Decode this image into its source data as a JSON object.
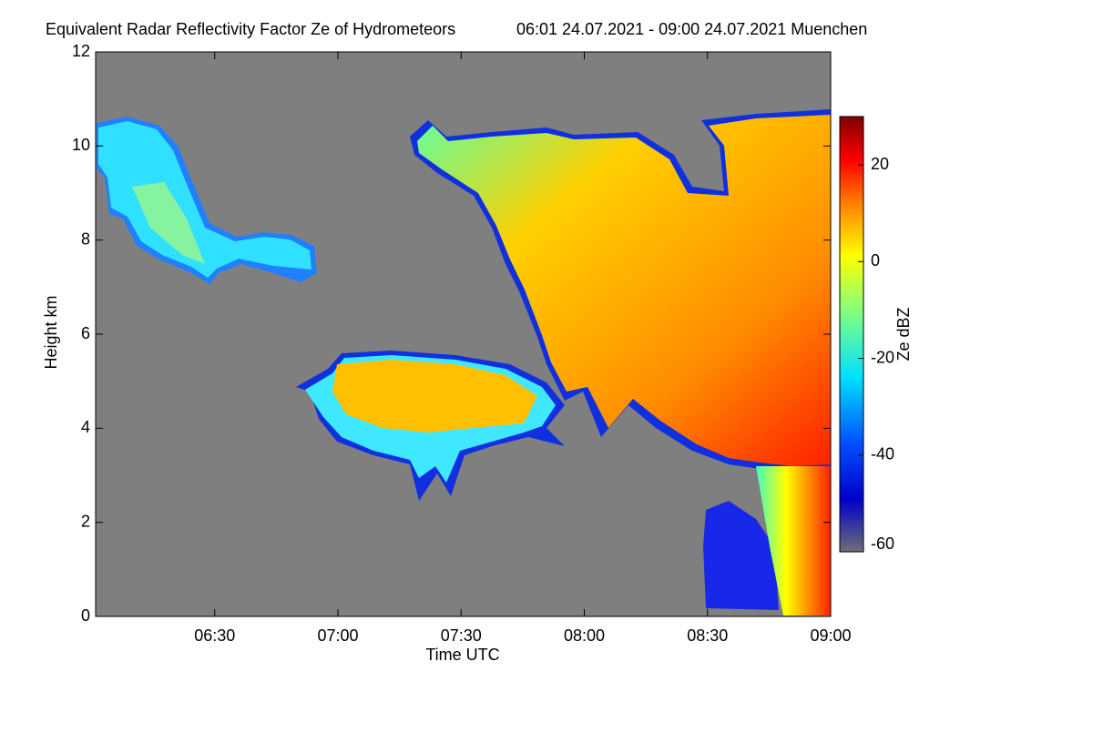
{
  "chart_data": {
    "type": "heatmap",
    "title": "Equivalent Radar Reflectivity Factor Ze of Hydrometeors",
    "subtitle": "06:01 24.07.2021 - 09:00 24.07.2021 Muenchen",
    "x_label": "Time UTC",
    "y_label": "Height km",
    "colorbar_label": "Ze dBZ",
    "xlim": [
      361,
      540
    ],
    "xticks": [
      {
        "value": 390,
        "label": "06:30"
      },
      {
        "value": 420,
        "label": "07:00"
      },
      {
        "value": 450,
        "label": "07:30"
      },
      {
        "value": 480,
        "label": "08:00"
      },
      {
        "value": 510,
        "label": "08:30"
      },
      {
        "value": 540,
        "label": "09:00"
      }
    ],
    "ylim": [
      0,
      12
    ],
    "yticks": [
      0,
      2,
      4,
      6,
      8,
      10,
      12
    ],
    "clim": [
      -60,
      30
    ],
    "cticks": [
      -60,
      -40,
      -20,
      0,
      20
    ]
  }
}
